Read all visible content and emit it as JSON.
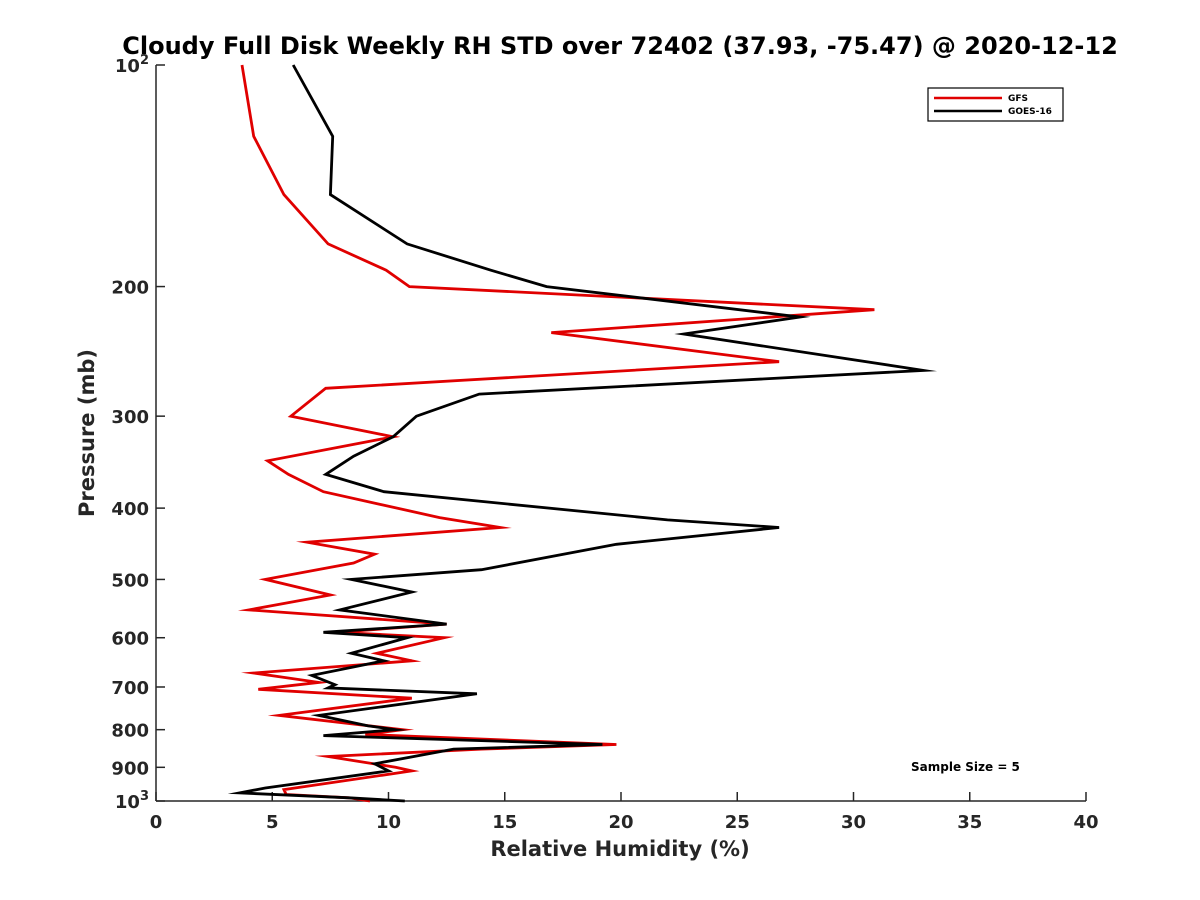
{
  "chart_data": {
    "type": "line",
    "title": "Cloudy Full Disk Weekly RH STD over 72402 (37.93, -75.47) @ 2020-12-12",
    "xlabel": "Relative Humidity (%)",
    "ylabel": "Pressure (mb)",
    "xlim": [
      0,
      40
    ],
    "ylim": [
      100,
      1000
    ],
    "yscale": "log",
    "y_reversed": true,
    "grid": false,
    "legend_position": "top-right",
    "x_ticks": [
      "0",
      "5",
      "10",
      "15",
      "20",
      "25",
      "30",
      "35",
      "40"
    ],
    "y_ticks": [
      {
        "value": 100,
        "base": "10",
        "exp": "2"
      },
      {
        "value": 200,
        "label": "200"
      },
      {
        "value": 300,
        "label": "300"
      },
      {
        "value": 400,
        "label": "400"
      },
      {
        "value": 500,
        "label": "500"
      },
      {
        "value": 600,
        "label": "600"
      },
      {
        "value": 700,
        "label": "700"
      },
      {
        "value": 800,
        "label": "800"
      },
      {
        "value": 900,
        "label": "900"
      },
      {
        "value": 1000,
        "base": "10",
        "exp": "3"
      }
    ],
    "annotation": "Sample Size = 5",
    "series": [
      {
        "name": "GFS",
        "color": "#e00000",
        "points": [
          [
            3.7,
            100
          ],
          [
            4.2,
            125
          ],
          [
            5.5,
            150
          ],
          [
            7.4,
            175
          ],
          [
            9.9,
            190
          ],
          [
            10.9,
            200
          ],
          [
            30.9,
            215
          ],
          [
            17.0,
            231
          ],
          [
            26.8,
            253
          ],
          [
            7.3,
            275
          ],
          [
            5.8,
            300
          ],
          [
            10.2,
            320
          ],
          [
            4.8,
            345
          ],
          [
            5.7,
            360
          ],
          [
            7.2,
            380
          ],
          [
            12.2,
            412
          ],
          [
            14.8,
            425
          ],
          [
            6.5,
            445
          ],
          [
            9.4,
            462
          ],
          [
            8.5,
            475
          ],
          [
            4.7,
            500
          ],
          [
            7.5,
            525
          ],
          [
            4.0,
            550
          ],
          [
            12.5,
            575
          ],
          [
            7.8,
            590
          ],
          [
            12.4,
            600
          ],
          [
            9.5,
            630
          ],
          [
            11.0,
            645
          ],
          [
            4.2,
            670
          ],
          [
            7.0,
            690
          ],
          [
            4.4,
            705
          ],
          [
            11.0,
            725
          ],
          [
            5.3,
            765
          ],
          [
            10.6,
            800
          ],
          [
            9.0,
            812
          ],
          [
            19.8,
            838
          ],
          [
            14.0,
            850
          ],
          [
            7.4,
            870
          ],
          [
            10.3,
            900
          ],
          [
            11.0,
            910
          ],
          [
            5.5,
            965
          ],
          [
            5.6,
            980
          ],
          [
            8.3,
            990
          ],
          [
            9.2,
            1000
          ]
        ]
      },
      {
        "name": "GOES-16",
        "color": "#000000",
        "points": [
          [
            5.9,
            100
          ],
          [
            7.6,
            125
          ],
          [
            7.5,
            150
          ],
          [
            10.8,
            175
          ],
          [
            14.4,
            190
          ],
          [
            16.8,
            200
          ],
          [
            27.7,
            220
          ],
          [
            22.7,
            232
          ],
          [
            33.0,
            260
          ],
          [
            13.9,
            280
          ],
          [
            11.2,
            300
          ],
          [
            10.2,
            320
          ],
          [
            8.5,
            340
          ],
          [
            7.3,
            360
          ],
          [
            9.8,
            380
          ],
          [
            22.0,
            415
          ],
          [
            26.8,
            425
          ],
          [
            19.8,
            448
          ],
          [
            14.0,
            485
          ],
          [
            8.4,
            500
          ],
          [
            11.0,
            520
          ],
          [
            7.9,
            550
          ],
          [
            12.5,
            575
          ],
          [
            7.2,
            590
          ],
          [
            10.8,
            600
          ],
          [
            8.4,
            630
          ],
          [
            9.8,
            645
          ],
          [
            6.7,
            675
          ],
          [
            7.7,
            695
          ],
          [
            7.4,
            702
          ],
          [
            13.8,
            715
          ],
          [
            7.0,
            765
          ],
          [
            9.1,
            790
          ],
          [
            10.3,
            800
          ],
          [
            7.2,
            815
          ],
          [
            19.2,
            838
          ],
          [
            12.8,
            850
          ],
          [
            9.4,
            890
          ],
          [
            10.0,
            910
          ],
          [
            4.7,
            960
          ],
          [
            3.6,
            975
          ],
          [
            8.3,
            990
          ],
          [
            10.7,
            1000
          ]
        ]
      }
    ]
  }
}
